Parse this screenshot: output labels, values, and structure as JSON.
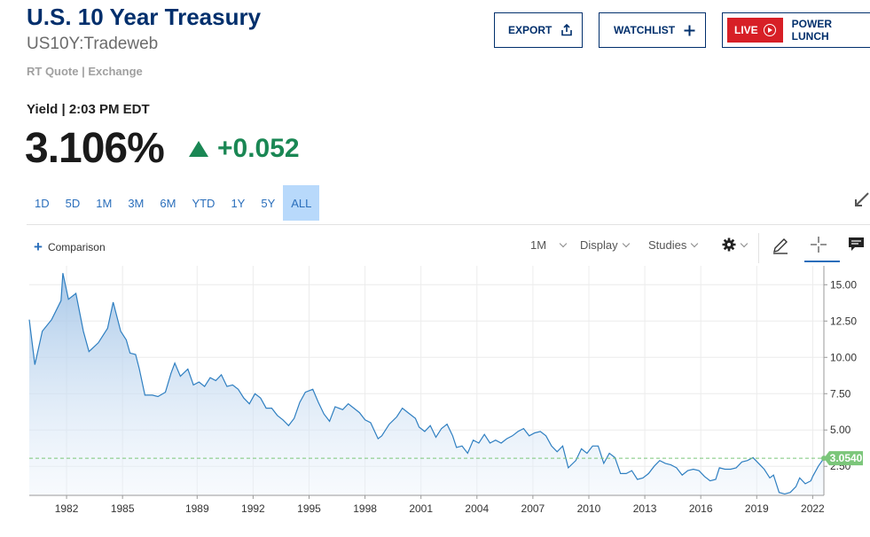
{
  "header": {
    "title": "U.S. 10 Year Treasury",
    "symbol": "US10Y:Tradeweb",
    "subquote": "RT Quote | Exchange",
    "yield_line": "Yield | 2:03 PM EDT",
    "price": "3.106%",
    "change": "+0.052"
  },
  "buttons": {
    "export": "EXPORT",
    "watchlist": "WATCHLIST",
    "live": "LIVE",
    "power_lunch": "POWER LUNCH"
  },
  "ranges": [
    "1D",
    "5D",
    "1M",
    "3M",
    "6M",
    "YTD",
    "1Y",
    "5Y",
    "ALL"
  ],
  "active_range": "ALL",
  "toolbar": {
    "comparison": "Comparison",
    "interval": "1M",
    "display": "Display",
    "studies": "Studies"
  },
  "colors": {
    "brand": "#002f6c",
    "positive": "#1a8754",
    "live": "#d71f26",
    "line": "#2f7fc1",
    "last_badge": "#7bc67a"
  },
  "chart_data": {
    "type": "area",
    "x_ticks": [
      "1982",
      "1985",
      "1989",
      "1992",
      "1995",
      "1998",
      "2001",
      "2004",
      "2007",
      "2010",
      "2013",
      "2016",
      "2019",
      "2022"
    ],
    "y_ticks": [
      "2.50",
      "5.00",
      "7.50",
      "10.00",
      "12.50",
      "15.00"
    ],
    "ylim": [
      0.5,
      16.3
    ],
    "last_value_label": "3.0540",
    "last_value": 3.054,
    "points": [
      [
        1980.0,
        12.6
      ],
      [
        1980.3,
        9.5
      ],
      [
        1980.7,
        11.8
      ],
      [
        1981.2,
        12.6
      ],
      [
        1981.7,
        13.9
      ],
      [
        1981.8,
        15.8
      ],
      [
        1982.1,
        14.0
      ],
      [
        1982.5,
        14.4
      ],
      [
        1982.9,
        11.8
      ],
      [
        1983.2,
        10.4
      ],
      [
        1983.7,
        11.0
      ],
      [
        1984.2,
        12.0
      ],
      [
        1984.5,
        13.8
      ],
      [
        1984.9,
        11.8
      ],
      [
        1985.2,
        11.2
      ],
      [
        1985.4,
        10.3
      ],
      [
        1985.7,
        10.2
      ],
      [
        1985.9,
        9.2
      ],
      [
        1986.2,
        7.4
      ],
      [
        1986.6,
        7.4
      ],
      [
        1986.9,
        7.3
      ],
      [
        1987.3,
        7.6
      ],
      [
        1987.6,
        8.9
      ],
      [
        1987.8,
        9.6
      ],
      [
        1988.1,
        8.7
      ],
      [
        1988.5,
        9.2
      ],
      [
        1988.8,
        8.1
      ],
      [
        1989.1,
        8.3
      ],
      [
        1989.4,
        8.0
      ],
      [
        1989.7,
        8.6
      ],
      [
        1990.0,
        8.4
      ],
      [
        1990.3,
        8.8
      ],
      [
        1990.6,
        8.0
      ],
      [
        1990.9,
        8.1
      ],
      [
        1991.2,
        7.8
      ],
      [
        1991.5,
        7.2
      ],
      [
        1991.8,
        6.8
      ],
      [
        1992.1,
        7.5
      ],
      [
        1992.4,
        7.2
      ],
      [
        1992.7,
        6.5
      ],
      [
        1993.0,
        6.5
      ],
      [
        1993.3,
        6.0
      ],
      [
        1993.6,
        5.7
      ],
      [
        1993.9,
        5.3
      ],
      [
        1994.2,
        5.8
      ],
      [
        1994.5,
        6.9
      ],
      [
        1994.8,
        7.6
      ],
      [
        1995.2,
        7.8
      ],
      [
        1995.5,
        6.9
      ],
      [
        1995.8,
        6.1
      ],
      [
        1996.1,
        5.6
      ],
      [
        1996.4,
        6.6
      ],
      [
        1996.8,
        6.4
      ],
      [
        1997.1,
        6.8
      ],
      [
        1997.4,
        6.5
      ],
      [
        1997.7,
        6.2
      ],
      [
        1998.0,
        5.7
      ],
      [
        1998.3,
        5.5
      ],
      [
        1998.7,
        4.4
      ],
      [
        1998.9,
        4.6
      ],
      [
        1999.3,
        5.4
      ],
      [
        1999.7,
        5.9
      ],
      [
        2000.0,
        6.5
      ],
      [
        2000.3,
        6.2
      ],
      [
        2000.7,
        5.8
      ],
      [
        2000.9,
        5.2
      ],
      [
        2001.2,
        4.9
      ],
      [
        2001.5,
        5.3
      ],
      [
        2001.8,
        4.5
      ],
      [
        2002.1,
        5.1
      ],
      [
        2002.4,
        5.4
      ],
      [
        2002.7,
        4.6
      ],
      [
        2002.9,
        3.8
      ],
      [
        2003.2,
        3.9
      ],
      [
        2003.5,
        3.4
      ],
      [
        2003.8,
        4.3
      ],
      [
        2004.1,
        4.1
      ],
      [
        2004.4,
        4.7
      ],
      [
        2004.7,
        4.1
      ],
      [
        2005.0,
        4.3
      ],
      [
        2005.3,
        4.1
      ],
      [
        2005.6,
        4.4
      ],
      [
        2005.9,
        4.6
      ],
      [
        2006.2,
        4.9
      ],
      [
        2006.5,
        5.1
      ],
      [
        2006.8,
        4.6
      ],
      [
        2007.1,
        4.8
      ],
      [
        2007.4,
        4.9
      ],
      [
        2007.7,
        4.6
      ],
      [
        2008.0,
        3.9
      ],
      [
        2008.3,
        3.5
      ],
      [
        2008.6,
        3.9
      ],
      [
        2008.9,
        2.4
      ],
      [
        2009.3,
        2.9
      ],
      [
        2009.6,
        3.7
      ],
      [
        2009.9,
        3.4
      ],
      [
        2010.2,
        3.9
      ],
      [
        2010.5,
        3.9
      ],
      [
        2010.8,
        2.7
      ],
      [
        2011.1,
        3.4
      ],
      [
        2011.4,
        3.1
      ],
      [
        2011.7,
        2.0
      ],
      [
        2012.0,
        2.0
      ],
      [
        2012.3,
        2.2
      ],
      [
        2012.6,
        1.6
      ],
      [
        2012.9,
        1.7
      ],
      [
        2013.2,
        2.0
      ],
      [
        2013.5,
        2.5
      ],
      [
        2013.8,
        2.9
      ],
      [
        2014.1,
        2.7
      ],
      [
        2014.4,
        2.6
      ],
      [
        2014.7,
        2.4
      ],
      [
        2015.0,
        1.9
      ],
      [
        2015.3,
        2.2
      ],
      [
        2015.6,
        2.3
      ],
      [
        2015.9,
        2.2
      ],
      [
        2016.2,
        1.8
      ],
      [
        2016.5,
        1.5
      ],
      [
        2016.8,
        1.6
      ],
      [
        2017.0,
        2.4
      ],
      [
        2017.3,
        2.3
      ],
      [
        2017.6,
        2.3
      ],
      [
        2017.9,
        2.4
      ],
      [
        2018.2,
        2.8
      ],
      [
        2018.5,
        2.9
      ],
      [
        2018.8,
        3.1
      ],
      [
        2019.1,
        2.7
      ],
      [
        2019.4,
        2.3
      ],
      [
        2019.7,
        1.7
      ],
      [
        2019.9,
        1.9
      ],
      [
        2020.2,
        0.7
      ],
      [
        2020.5,
        0.6
      ],
      [
        2020.8,
        0.7
      ],
      [
        2021.1,
        1.1
      ],
      [
        2021.3,
        1.7
      ],
      [
        2021.6,
        1.3
      ],
      [
        2021.9,
        1.5
      ],
      [
        2022.0,
        1.8
      ],
      [
        2022.3,
        2.5
      ],
      [
        2022.6,
        3.054
      ]
    ]
  }
}
